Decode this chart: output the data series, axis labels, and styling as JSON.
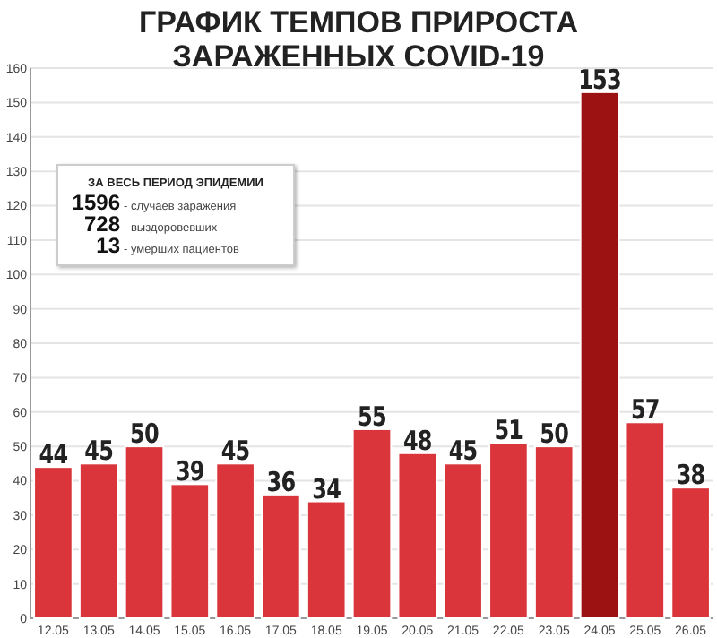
{
  "chart_data": {
    "type": "bar",
    "title": "ГРАФИК ТЕМПОВ ПРИРОСТА\nЗАРАЖЕННЫХ COVID-19",
    "categories": [
      "12.05",
      "13.05",
      "14.05",
      "15.05",
      "16.05",
      "17.05",
      "18.05",
      "19.05",
      "20.05",
      "21.05",
      "22.05",
      "23.05",
      "24.05",
      "25.05",
      "26.05"
    ],
    "values": [
      44,
      45,
      50,
      39,
      45,
      36,
      34,
      55,
      48,
      45,
      51,
      50,
      153,
      57,
      38
    ],
    "colors": [
      "#d9353b",
      "#d9353b",
      "#d9353b",
      "#d9353b",
      "#d9353b",
      "#d9353b",
      "#d9353b",
      "#d9353b",
      "#d9353b",
      "#d9353b",
      "#d9353b",
      "#d9353b",
      "#9c1212",
      "#d9353b",
      "#d9353b"
    ],
    "ylim": [
      0,
      160
    ],
    "yticks": [
      0,
      10,
      20,
      30,
      40,
      50,
      60,
      70,
      80,
      90,
      100,
      110,
      120,
      130,
      140,
      150,
      160
    ],
    "grid": "y",
    "data_labels": true,
    "annotations": [
      "ЗА ВЕСЬ ПЕРИОД ЭПИДЕМИИ",
      "1596 - случаев заражения",
      "728 - выздоровевших",
      "13 - умерших пациентов"
    ]
  }
}
